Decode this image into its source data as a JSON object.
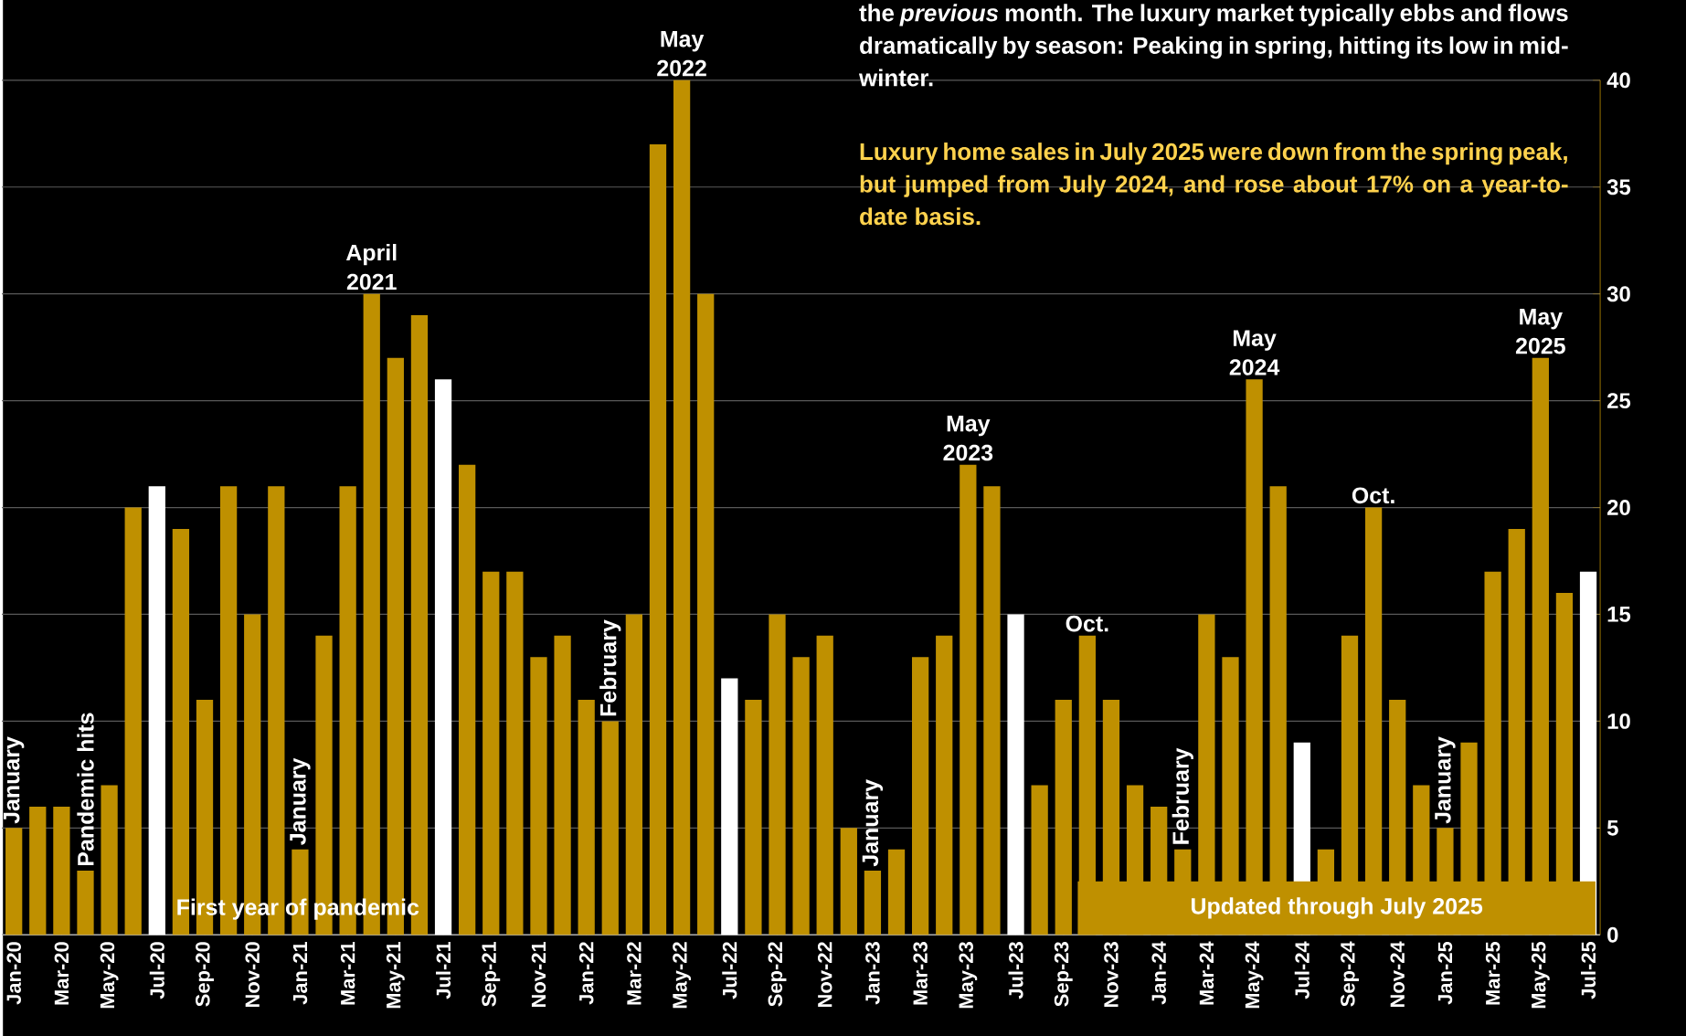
{
  "chart_data": {
    "type": "bar",
    "categories": [
      "Jan-20",
      null,
      "Mar-20",
      null,
      "May-20",
      null,
      "Jul-20",
      null,
      "Sep-20",
      null,
      "Nov-20",
      null,
      "Jan-21",
      null,
      "Mar-21",
      null,
      "May-21",
      null,
      "Jul-21",
      null,
      "Sep-21",
      null,
      "Nov-21",
      null,
      "Jan-22",
      null,
      "Mar-22",
      null,
      "May-22",
      null,
      "Jul-22",
      null,
      "Sep-22",
      null,
      "Nov-22",
      null,
      "Jan-23",
      null,
      "Mar-23",
      null,
      "May-23",
      null,
      "Jul-23",
      null,
      "Sep-23",
      null,
      "Nov-23",
      null,
      "Jan-24",
      null,
      "Mar-24",
      null,
      "May-24",
      null,
      "Jul-24",
      null,
      "Sep-24",
      null,
      "Nov-24",
      null,
      "Jan-25",
      null,
      "Mar-25",
      null,
      "May-25",
      null,
      "Jul-25"
    ],
    "values": [
      5,
      6,
      6,
      3,
      7,
      20,
      21,
      19,
      11,
      21,
      15,
      21,
      4,
      14,
      21,
      30,
      27,
      29,
      26,
      22,
      17,
      17,
      13,
      14,
      11,
      10,
      15,
      37,
      40,
      30,
      12,
      11,
      15,
      13,
      14,
      5,
      3,
      4,
      13,
      14,
      22,
      21,
      15,
      7,
      11,
      14,
      11,
      7,
      6,
      4,
      15,
      13,
      26,
      21,
      9,
      4,
      14,
      20,
      11,
      7,
      5,
      9,
      17,
      19,
      27,
      16,
      17
    ],
    "colors": [
      "#bf9000",
      "#bf9000",
      "#bf9000",
      "#bf9000",
      "#bf9000",
      "#bf9000",
      "#ffffff",
      "#bf9000",
      "#bf9000",
      "#bf9000",
      "#bf9000",
      "#bf9000",
      "#bf9000",
      "#bf9000",
      "#bf9000",
      "#bf9000",
      "#bf9000",
      "#bf9000",
      "#ffffff",
      "#bf9000",
      "#bf9000",
      "#bf9000",
      "#bf9000",
      "#bf9000",
      "#bf9000",
      "#bf9000",
      "#bf9000",
      "#bf9000",
      "#bf9000",
      "#bf9000",
      "#ffffff",
      "#bf9000",
      "#bf9000",
      "#bf9000",
      "#bf9000",
      "#bf9000",
      "#bf9000",
      "#bf9000",
      "#bf9000",
      "#bf9000",
      "#bf9000",
      "#bf9000",
      "#ffffff",
      "#bf9000",
      "#bf9000",
      "#bf9000",
      "#bf9000",
      "#bf9000",
      "#bf9000",
      "#bf9000",
      "#bf9000",
      "#bf9000",
      "#bf9000",
      "#bf9000",
      "#ffffff",
      "#bf9000",
      "#bf9000",
      "#bf9000",
      "#bf9000",
      "#bf9000",
      "#bf9000",
      "#bf9000",
      "#bf9000",
      "#bf9000",
      "#bf9000",
      "#bf9000",
      "#ffffff"
    ],
    "ylim": [
      0,
      40
    ],
    "yticks": [
      0,
      5,
      10,
      15,
      20,
      25,
      30,
      35,
      40
    ],
    "grid": "y",
    "annotations": [
      "the *previous* month. The luxury market typically ebbs and flows dramatically by season: Peaking in spring, hitting its low in mid-winter.",
      "Luxury home sales in July 2025 were down from the spring peak, but jumped from July 2024, and rose about 17% on a year-to-date basis.",
      "January",
      "Pandemic hits",
      "First year of pandemic",
      "January",
      "April 2021",
      "February",
      "May 2022",
      "January",
      "May 2023",
      "Oct.",
      "February",
      "May 2024",
      "Oct.",
      "January",
      "May 2025",
      "Updated through July 2025"
    ]
  }
}
